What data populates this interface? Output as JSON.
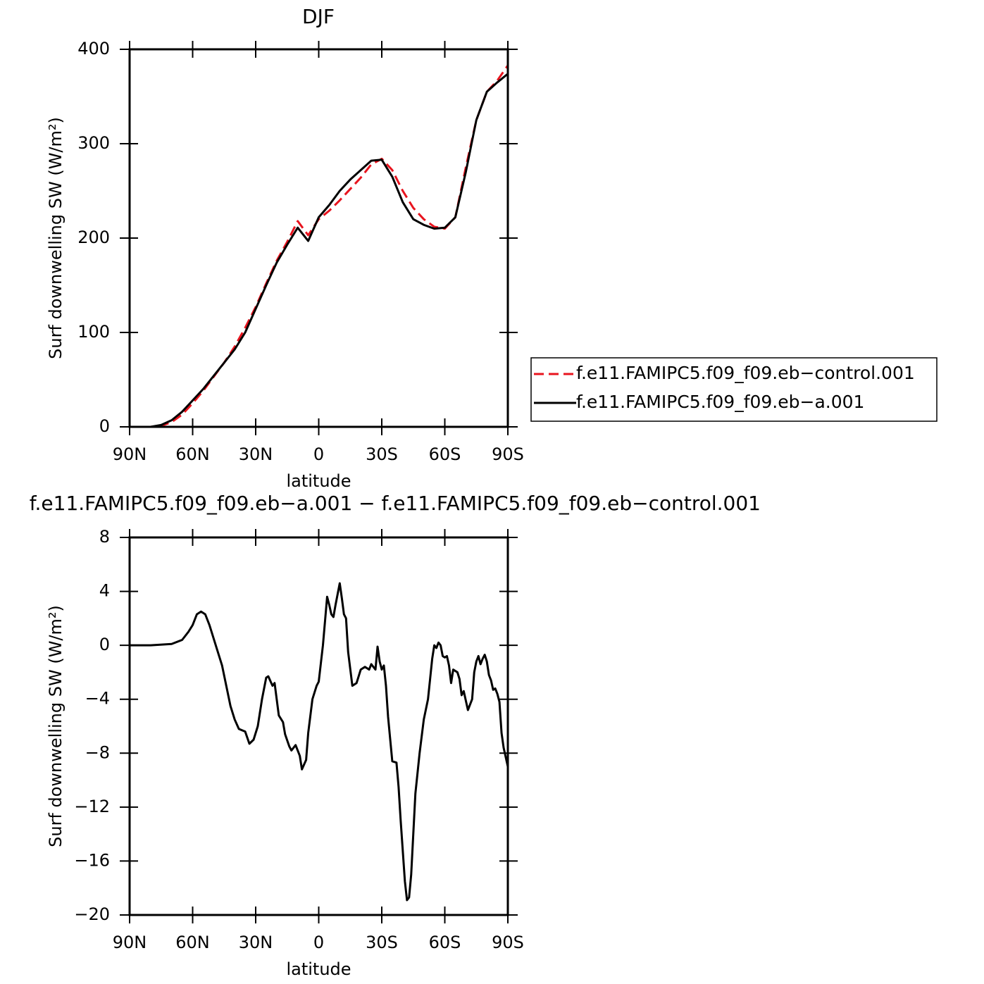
{
  "chart_data": [
    {
      "type": "line",
      "title": "DJF",
      "xlabel": "latitude",
      "ylabel": "Surf downwelling SW (W/m²)",
      "x": [
        90,
        85,
        80,
        75,
        70,
        65,
        60,
        55,
        50,
        45,
        40,
        35,
        30,
        25,
        20,
        15,
        10,
        5,
        0,
        -5,
        -10,
        -15,
        -20,
        -25,
        -30,
        -35,
        -40,
        -45,
        -50,
        -55,
        -60,
        -65,
        -70,
        -75,
        -80,
        -85,
        -90
      ],
      "series": [
        {
          "name": "f.e11.FAMIPC5.f09_f09.eb−control.001",
          "color": "#e8141e",
          "style": "dashed",
          "values": [
            0,
            0,
            0,
            1,
            5,
            13,
            25,
            38,
            53,
            68,
            85,
            105,
            127,
            152,
            176,
            196,
            218,
            203,
            220,
            229,
            240,
            252,
            264,
            278,
            284,
            272,
            250,
            232,
            220,
            212,
            210,
            222,
            275,
            325,
            355,
            367,
            383
          ]
        },
        {
          "name": "f.e11.FAMIPC5.f09_f09.eb−a.001",
          "color": "#000000",
          "style": "solid",
          "values": [
            0,
            0,
            0,
            2,
            7,
            16,
            28,
            40,
            54,
            68,
            82,
            100,
            125,
            150,
            174,
            193,
            211,
            197,
            222,
            235,
            250,
            262,
            272,
            282,
            283,
            265,
            238,
            220,
            214,
            210,
            211,
            222,
            270,
            325,
            355,
            365,
            374
          ]
        }
      ],
      "xlim": [
        90,
        -90
      ],
      "xticks": [
        {
          "value": 90,
          "label": "90N"
        },
        {
          "value": 60,
          "label": "60N"
        },
        {
          "value": 30,
          "label": "30N"
        },
        0,
        {
          "value": -30,
          "label": "30S"
        },
        {
          "value": -60,
          "label": "60S"
        },
        {
          "value": -90,
          "label": "90S"
        }
      ],
      "ylim": [
        0,
        400
      ],
      "yticks": [
        0,
        100,
        200,
        300,
        400
      ],
      "legend": "right"
    },
    {
      "type": "line",
      "title": "f.e11.FAMIPC5.f09_f09.eb−a.001 − f.e11.FAMIPC5.f09_f09.eb−control.001",
      "xlabel": "latitude",
      "ylabel": "Surf downwelling SW (W/m²)",
      "x": [
        90,
        80,
        70,
        65,
        62,
        60,
        58,
        56,
        54,
        52,
        50,
        48,
        46,
        44,
        42,
        40,
        38,
        35,
        33,
        31,
        29,
        27,
        25,
        24,
        22,
        21,
        19,
        17,
        16,
        14,
        13,
        11,
        9,
        8,
        6,
        5,
        3,
        1,
        0,
        -2,
        -4,
        -5,
        -6,
        -7,
        -8,
        -10,
        -11,
        -12,
        -13,
        -14,
        -16,
        -18,
        -20,
        -22,
        -24,
        -25,
        -27,
        -28,
        -29,
        -30,
        -31,
        -32,
        -33,
        -35,
        -37,
        -38,
        -39,
        -41,
        -42,
        -43,
        -44,
        -45,
        -46,
        -48,
        -50,
        -52,
        -53,
        -54,
        -55,
        -56,
        -57,
        -58,
        -59,
        -60,
        -61,
        -62,
        -63,
        -64,
        -66,
        -67,
        -68,
        -69,
        -71,
        -73,
        -74,
        -75,
        -76,
        -77,
        -78,
        -79,
        -80,
        -81,
        -82,
        -83,
        -84,
        -85,
        -86,
        -87,
        -88,
        -89,
        -90
      ],
      "series": [
        {
          "color": "#000000",
          "style": "solid",
          "values": [
            0,
            0,
            0.1,
            0.4,
            1,
            1.5,
            2.3,
            2.5,
            2.3,
            1.5,
            0.5,
            -0.5,
            -1.5,
            -3,
            -4.5,
            -5.5,
            -6.2,
            -6.4,
            -7.3,
            -7,
            -6,
            -4,
            -2.4,
            -2.3,
            -3,
            -2.8,
            -5.2,
            -5.7,
            -6.6,
            -7.5,
            -7.8,
            -7.4,
            -8.2,
            -9.2,
            -8.5,
            -6.5,
            -4,
            -3,
            -2.7,
            0,
            3.6,
            3,
            2.3,
            2.1,
            3,
            4.6,
            3.5,
            2.3,
            2,
            -0.5,
            -3,
            -2.8,
            -1.8,
            -1.6,
            -1.8,
            -1.4,
            -1.8,
            -0.1,
            -1.2,
            -1.8,
            -1.5,
            -3,
            -5.3,
            -8.6,
            -8.7,
            -10.5,
            -13,
            -17.5,
            -18.9,
            -18.7,
            -17,
            -14,
            -11,
            -8,
            -5.5,
            -4,
            -2.5,
            -1,
            0,
            -0.2,
            0.2,
            0,
            -0.8,
            -0.9,
            -0.8,
            -1.5,
            -2.8,
            -1.8,
            -2,
            -2.5,
            -3.7,
            -3.4,
            -4.8,
            -4,
            -2,
            -1.2,
            -0.8,
            -1.4,
            -1,
            -0.7,
            -1.2,
            -2.2,
            -2.6,
            -3.3,
            -3.2,
            -3.6,
            -4.2,
            -6.5,
            -7.6,
            -8.3,
            -9
          ]
        }
      ],
      "xlim": [
        90,
        -90
      ],
      "xticks": [
        {
          "value": 90,
          "label": "90N"
        },
        {
          "value": 60,
          "label": "60N"
        },
        {
          "value": 30,
          "label": "30N"
        },
        0,
        {
          "value": -30,
          "label": "30S"
        },
        {
          "value": -60,
          "label": "60S"
        },
        {
          "value": -90,
          "label": "90S"
        }
      ],
      "ylim": [
        -20,
        8
      ],
      "yticks": [
        8,
        4,
        0,
        {
          "value": -4,
          "label": "−4"
        },
        {
          "value": -8,
          "label": "−8"
        },
        {
          "value": -12,
          "label": "−12"
        },
        {
          "value": -16,
          "label": "−16"
        },
        {
          "value": -20,
          "label": "−20"
        }
      ]
    }
  ]
}
